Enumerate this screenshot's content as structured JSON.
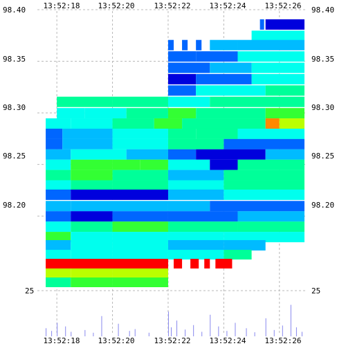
{
  "chart_data": {
    "type": "heatmap",
    "title": "",
    "xlabel": "",
    "ylabel": "",
    "x_ticks": [
      "13:52:18",
      "13:52:20",
      "13:52:22",
      "13:52:24",
      "13:52:26"
    ],
    "x_tick_times_s": [
      18,
      20,
      22,
      24,
      26
    ],
    "xlim_s": [
      17.3,
      27.0
    ],
    "y_ticks": [
      "98.40",
      "98.35",
      "98.30",
      "98.25",
      "98.20"
    ],
    "y_tick_values": [
      98.4,
      98.35,
      98.3,
      98.25,
      98.2
    ],
    "ylim": [
      98.4,
      98.172
    ],
    "volume_axis_label": "25",
    "grid": true,
    "colormap": [
      "#0000dd",
      "#0066ff",
      "#00bbff",
      "#00ffee",
      "#00ff99",
      "#33ff33",
      "#bbff00",
      "#ffff00",
      "#ff8800",
      "#ff0000"
    ],
    "heat_rows": [
      {
        "price": 98.386,
        "spans": [
          [
            25.5,
            26.9,
            0.05
          ],
          [
            25.3,
            25.45,
            0.1
          ]
        ]
      },
      {
        "price": 98.375,
        "spans": [
          [
            25.0,
            26.9,
            0.3
          ]
        ]
      },
      {
        "price": 98.366,
        "spans": [
          [
            22.0,
            22.2,
            0.15
          ],
          [
            22.5,
            22.7,
            0.1
          ],
          [
            23.0,
            23.2,
            0.1
          ],
          [
            23.5,
            24.5,
            0.2
          ],
          [
            24.5,
            26.9,
            0.25
          ]
        ]
      },
      {
        "price": 98.355,
        "spans": [
          [
            22.0,
            23.0,
            0.1
          ],
          [
            23.0,
            24.5,
            0.15
          ],
          [
            24.5,
            26.9,
            0.3
          ]
        ]
      },
      {
        "price": 98.344,
        "spans": [
          [
            22.0,
            23.5,
            0.1
          ],
          [
            23.5,
            25.0,
            0.2
          ],
          [
            25.0,
            26.9,
            0.3
          ]
        ]
      },
      {
        "price": 98.333,
        "spans": [
          [
            22.0,
            23.0,
            0.05
          ],
          [
            23.0,
            25.0,
            0.15
          ],
          [
            25.0,
            26.9,
            0.35
          ]
        ]
      },
      {
        "price": 98.322,
        "spans": [
          [
            22.0,
            23.0,
            0.15
          ],
          [
            23.0,
            25.5,
            0.3
          ],
          [
            25.5,
            26.9,
            0.4
          ]
        ]
      },
      {
        "price": 98.311,
        "spans": [
          [
            18.0,
            20.0,
            0.4
          ],
          [
            20.0,
            22.0,
            0.45
          ],
          [
            22.0,
            23.5,
            0.35
          ],
          [
            23.5,
            26.9,
            0.4
          ]
        ]
      },
      {
        "price": 98.3,
        "spans": [
          [
            18.0,
            19.0,
            0.3
          ],
          [
            19.0,
            20.5,
            0.35
          ],
          [
            20.5,
            22.0,
            0.45
          ],
          [
            22.0,
            23.0,
            0.55
          ],
          [
            23.0,
            25.5,
            0.45
          ],
          [
            25.5,
            26.9,
            0.6
          ]
        ]
      },
      {
        "price": 98.29,
        "spans": [
          [
            17.6,
            18.5,
            0.3
          ],
          [
            18.5,
            20.0,
            0.35
          ],
          [
            20.0,
            21.5,
            0.45
          ],
          [
            21.5,
            22.5,
            0.5
          ],
          [
            22.5,
            25.5,
            0.45
          ],
          [
            25.5,
            26.0,
            0.85
          ],
          [
            26.0,
            26.9,
            0.7
          ]
        ]
      },
      {
        "price": 98.28,
        "spans": [
          [
            17.6,
            18.2,
            0.15
          ],
          [
            18.2,
            20.0,
            0.25
          ],
          [
            20.0,
            22.0,
            0.3
          ],
          [
            22.0,
            23.0,
            0.45
          ],
          [
            23.0,
            24.5,
            0.4
          ],
          [
            24.5,
            26.9,
            0.35
          ]
        ]
      },
      {
        "price": 98.27,
        "spans": [
          [
            17.6,
            18.2,
            0.1
          ],
          [
            18.2,
            20.0,
            0.25
          ],
          [
            20.0,
            22.0,
            0.3
          ],
          [
            22.0,
            24.0,
            0.4
          ],
          [
            24.0,
            26.9,
            0.15
          ]
        ]
      },
      {
        "price": 98.26,
        "spans": [
          [
            17.6,
            18.5,
            0.2
          ],
          [
            18.5,
            20.5,
            0.3
          ],
          [
            20.5,
            22.0,
            0.2
          ],
          [
            22.0,
            23.0,
            0.15
          ],
          [
            23.0,
            25.5,
            0.05
          ],
          [
            25.5,
            26.9,
            0.2
          ]
        ]
      },
      {
        "price": 98.25,
        "spans": [
          [
            17.6,
            18.5,
            0.35
          ],
          [
            18.5,
            20.0,
            0.6
          ],
          [
            20.0,
            21.0,
            0.5
          ],
          [
            21.0,
            22.0,
            0.55
          ],
          [
            22.0,
            23.5,
            0.3
          ],
          [
            23.5,
            24.5,
            0.05
          ],
          [
            24.5,
            26.9,
            0.45
          ]
        ]
      },
      {
        "price": 98.24,
        "spans": [
          [
            17.6,
            18.5,
            0.45
          ],
          [
            18.5,
            20.0,
            0.55
          ],
          [
            20.0,
            22.0,
            0.45
          ],
          [
            22.0,
            24.0,
            0.2
          ],
          [
            24.0,
            26.9,
            0.4
          ]
        ]
      },
      {
        "price": 98.23,
        "spans": [
          [
            17.6,
            18.5,
            0.35
          ],
          [
            18.5,
            20.0,
            0.4
          ],
          [
            20.0,
            22.0,
            0.4
          ],
          [
            22.0,
            24.0,
            0.3
          ],
          [
            24.0,
            26.9,
            0.45
          ]
        ]
      },
      {
        "price": 98.221,
        "spans": [
          [
            17.6,
            18.5,
            0.15
          ],
          [
            18.5,
            22.0,
            0.05
          ],
          [
            22.0,
            24.0,
            0.2
          ],
          [
            24.0,
            26.9,
            0.3
          ]
        ]
      },
      {
        "price": 98.21,
        "spans": [
          [
            17.6,
            18.5,
            0.2
          ],
          [
            18.5,
            22.0,
            0.25
          ],
          [
            22.0,
            23.5,
            0.25
          ],
          [
            23.5,
            26.9,
            0.15
          ]
        ]
      },
      {
        "price": 98.2,
        "spans": [
          [
            17.6,
            18.5,
            0.15
          ],
          [
            18.5,
            20.0,
            0.05
          ],
          [
            20.0,
            22.0,
            0.1
          ],
          [
            22.0,
            24.5,
            0.15
          ],
          [
            24.5,
            26.9,
            0.2
          ]
        ]
      },
      {
        "price": 98.19,
        "spans": [
          [
            17.6,
            18.5,
            0.35
          ],
          [
            18.5,
            20.0,
            0.45
          ],
          [
            20.0,
            22.0,
            0.55
          ],
          [
            22.0,
            24.5,
            0.4
          ],
          [
            24.5,
            26.9,
            0.4
          ]
        ]
      },
      {
        "price": 98.18,
        "spans": [
          [
            17.6,
            18.5,
            0.5
          ],
          [
            18.5,
            20.0,
            0.35
          ],
          [
            20.0,
            22.0,
            0.3
          ],
          [
            22.0,
            24.0,
            0.3
          ],
          [
            24.0,
            26.9,
            0.35
          ]
        ]
      },
      {
        "price": 98.172,
        "spans": [
          [
            17.6,
            18.5,
            0.25
          ],
          [
            18.5,
            20.0,
            0.3
          ],
          [
            20.0,
            22.0,
            0.3
          ],
          [
            22.0,
            24.0,
            0.2
          ],
          [
            24.0,
            25.5,
            0.2
          ]
        ]
      }
    ],
    "lower_rows": [
      {
        "spans": [
          [
            17.6,
            18.5,
            0.3
          ],
          [
            18.5,
            20.0,
            0.35
          ],
          [
            20.0,
            22.0,
            0.3
          ],
          [
            22.0,
            24.0,
            0.35
          ],
          [
            24.0,
            25.0,
            0.4
          ]
        ]
      },
      {
        "spans": [
          [
            17.6,
            22.0,
            1.0
          ],
          [
            22.2,
            22.5,
            1.0
          ],
          [
            22.8,
            23.1,
            1.0
          ],
          [
            23.3,
            23.5,
            1.0
          ],
          [
            23.7,
            24.3,
            1.0
          ]
        ]
      },
      {
        "spans": [
          [
            17.6,
            18.5,
            0.65
          ],
          [
            18.5,
            20.0,
            0.7
          ],
          [
            20.0,
            22.0,
            0.72
          ]
        ]
      },
      {
        "spans": [
          [
            17.6,
            18.5,
            0.45
          ],
          [
            18.5,
            20.0,
            0.5
          ],
          [
            20.0,
            22.0,
            0.5
          ]
        ]
      }
    ],
    "volume_bars": [
      {
        "t": 17.6,
        "v": 18
      },
      {
        "t": 17.8,
        "v": 12
      },
      {
        "t": 18.0,
        "v": 30
      },
      {
        "t": 18.3,
        "v": 22
      },
      {
        "t": 18.5,
        "v": 10
      },
      {
        "t": 19.0,
        "v": 14
      },
      {
        "t": 19.3,
        "v": 8
      },
      {
        "t": 19.6,
        "v": 45
      },
      {
        "t": 20.2,
        "v": 28
      },
      {
        "t": 20.6,
        "v": 12
      },
      {
        "t": 20.8,
        "v": 16
      },
      {
        "t": 21.3,
        "v": 8
      },
      {
        "t": 22.0,
        "v": 55
      },
      {
        "t": 22.1,
        "v": 20
      },
      {
        "t": 22.3,
        "v": 35
      },
      {
        "t": 22.6,
        "v": 15
      },
      {
        "t": 22.9,
        "v": 25
      },
      {
        "t": 23.2,
        "v": 10
      },
      {
        "t": 23.5,
        "v": 48
      },
      {
        "t": 23.8,
        "v": 22
      },
      {
        "t": 24.1,
        "v": 12
      },
      {
        "t": 24.4,
        "v": 30
      },
      {
        "t": 24.8,
        "v": 18
      },
      {
        "t": 25.1,
        "v": 9
      },
      {
        "t": 25.5,
        "v": 40
      },
      {
        "t": 25.8,
        "v": 14
      },
      {
        "t": 26.1,
        "v": 24
      },
      {
        "t": 26.4,
        "v": 70
      },
      {
        "t": 26.6,
        "v": 20
      },
      {
        "t": 26.8,
        "v": 10
      }
    ]
  }
}
